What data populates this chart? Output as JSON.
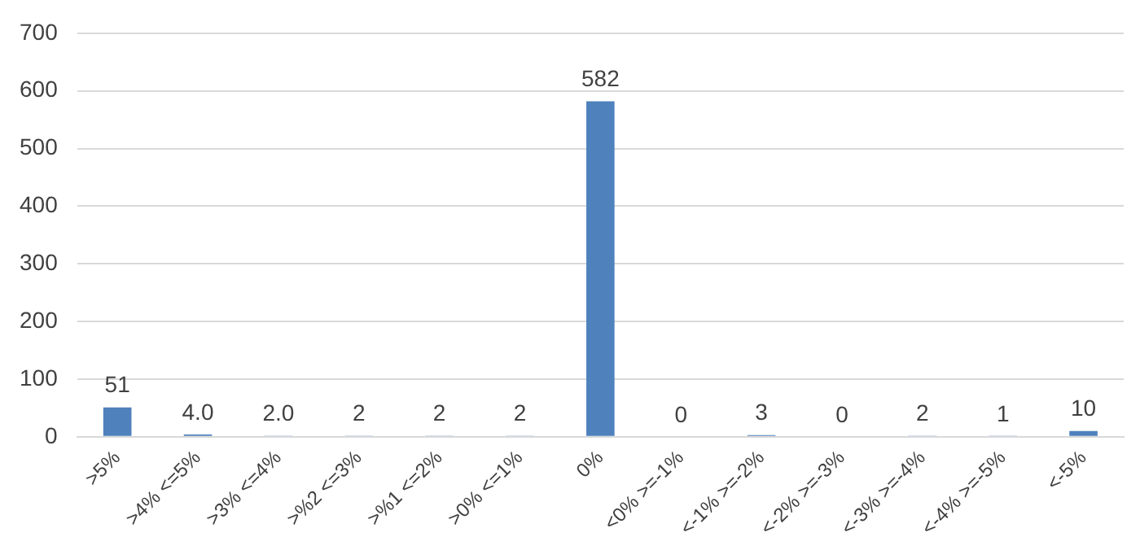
{
  "chart_data": {
    "type": "bar",
    "categories": [
      ">5%",
      ">4% <=5%",
      ">3% <=4%",
      ">%2 <=3%",
      ">%1 <=2%",
      ">0% <=1%",
      "0%",
      "<0% >=-1%",
      "<-1% >=-2%",
      "<-2% >=-3%",
      "<-3% >=-4%",
      "<-4% >=-5%",
      "<-5%"
    ],
    "values": [
      51,
      4,
      2,
      2,
      2,
      2,
      582,
      0,
      3,
      0,
      2,
      1,
      10
    ],
    "value_labels": [
      "51",
      "4.0",
      "2.0",
      "2",
      "2",
      "2",
      "582",
      "0",
      "3",
      "0",
      "2",
      "1",
      "10"
    ],
    "color": "#4f81bd",
    "ylim": [
      0,
      700
    ],
    "yticks": [
      0,
      100,
      200,
      300,
      400,
      500,
      600,
      700
    ],
    "grid": "y",
    "legend": false
  }
}
